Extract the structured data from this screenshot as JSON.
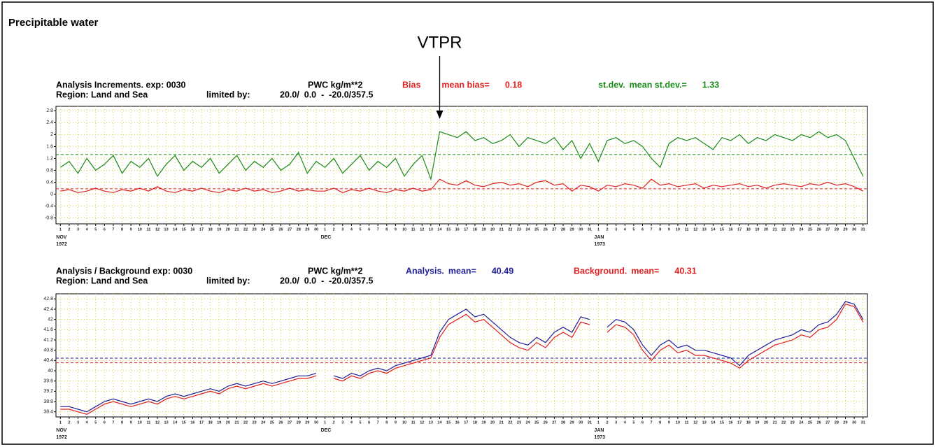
{
  "title": "Precipitable water",
  "annotation": "VTPR",
  "chart_data": [
    {
      "type": "line",
      "title": "Analysis Increments. exp: 0030",
      "units": "PWC kg/m**2",
      "region": "Region: Land and Sea",
      "limit_label": "limited by:",
      "limits": "20.0/  0.0  -  -20.0/357.5",
      "categories": [
        "1",
        "2",
        "3",
        "4",
        "5",
        "6",
        "7",
        "8",
        "9",
        "10",
        "11",
        "12",
        "13",
        "14",
        "15",
        "16",
        "17",
        "18",
        "19",
        "20",
        "21",
        "22",
        "23",
        "24",
        "25",
        "26",
        "27",
        "28",
        "29",
        "30",
        "1",
        "2",
        "3",
        "4",
        "5",
        "6",
        "7",
        "8",
        "9",
        "10",
        "11",
        "12",
        "13",
        "14",
        "15",
        "16",
        "17",
        "18",
        "19",
        "20",
        "21",
        "22",
        "23",
        "24",
        "25",
        "26",
        "27",
        "28",
        "29",
        "30",
        "31",
        "1",
        "2",
        "3",
        "4",
        "5",
        "6",
        "7",
        "8",
        "9",
        "10",
        "11",
        "12",
        "13",
        "14",
        "15",
        "16",
        "17",
        "18",
        "19",
        "20",
        "21",
        "22",
        "23",
        "24",
        "25",
        "26",
        "27",
        "28",
        "29",
        "30",
        "31"
      ],
      "months": [
        {
          "name": "NOV",
          "year": "1972"
        },
        {
          "name": "DEC"
        },
        {
          "name": "JAN",
          "year": "1973"
        }
      ],
      "ylim": [
        -1.0,
        2.95
      ],
      "yticks": [
        -0.8,
        -0.4,
        0,
        0.4,
        0.8,
        1.2,
        1.6,
        2,
        2.4,
        2.8
      ],
      "grid": true,
      "series": [
        {
          "name": "Bias",
          "mean_label": "mean bias=",
          "mean": 0.18,
          "color": "#e02020",
          "values": [
            0.1,
            0.15,
            0.05,
            0.1,
            0.2,
            0.1,
            0.05,
            0.15,
            0.1,
            0.2,
            0.1,
            0.25,
            0.1,
            0.05,
            0.15,
            0.1,
            0.2,
            0.1,
            0.05,
            0.15,
            0.1,
            0.2,
            0.1,
            0.15,
            0.05,
            0.1,
            0.2,
            0.1,
            0.15,
            0.1,
            0.1,
            0.2,
            0.05,
            0.15,
            0.1,
            0.2,
            0.1,
            0.05,
            0.15,
            0.1,
            0.2,
            0.1,
            0.15,
            0.5,
            0.35,
            0.3,
            0.45,
            0.3,
            0.25,
            0.35,
            0.4,
            0.3,
            0.35,
            0.25,
            0.4,
            0.45,
            0.3,
            0.35,
            0.1,
            0.3,
            0.25,
            0.1,
            0.3,
            0.25,
            0.35,
            0.3,
            0.2,
            0.5,
            0.3,
            0.35,
            0.25,
            0.3,
            0.35,
            0.2,
            0.3,
            0.25,
            0.3,
            0.35,
            0.25,
            0.3,
            0.2,
            0.3,
            0.35,
            0.3,
            0.25,
            0.35,
            0.3,
            0.4,
            0.3,
            0.35,
            0.25,
            0.1
          ]
        },
        {
          "name": "st.dev.",
          "mean_label": "mean st.dev.=",
          "mean": 1.33,
          "color": "#1a8a1a",
          "values": [
            0.9,
            1.1,
            0.7,
            1.2,
            0.8,
            1.0,
            1.3,
            0.7,
            1.1,
            0.9,
            1.2,
            0.6,
            1.0,
            1.3,
            0.8,
            1.1,
            0.9,
            1.2,
            0.7,
            1.0,
            1.3,
            0.8,
            1.1,
            0.9,
            1.2,
            0.8,
            1.0,
            1.4,
            0.7,
            1.1,
            0.9,
            1.2,
            0.7,
            1.0,
            1.3,
            0.8,
            1.1,
            0.9,
            1.2,
            0.6,
            1.0,
            1.3,
            0.5,
            2.1,
            2.0,
            1.9,
            2.1,
            1.8,
            1.9,
            1.7,
            1.8,
            2.0,
            1.6,
            1.9,
            1.8,
            1.7,
            1.9,
            1.5,
            1.8,
            1.2,
            1.7,
            1.1,
            1.8,
            1.9,
            1.7,
            1.8,
            1.6,
            1.2,
            0.9,
            1.7,
            1.9,
            1.8,
            1.9,
            1.7,
            1.5,
            1.9,
            1.8,
            2.0,
            1.7,
            1.9,
            1.8,
            2.0,
            1.9,
            1.8,
            2.0,
            1.9,
            2.1,
            1.9,
            2.0,
            1.8,
            1.2,
            0.6
          ]
        }
      ]
    },
    {
      "type": "line",
      "title": "Analysis / Background exp: 0030",
      "units": "PWC kg/m**2",
      "region": "Region: Land and Sea",
      "limit_label": "limited by:",
      "limits": "20.0/  0.0  -  -20.0/357.5",
      "categories": [
        "1",
        "2",
        "3",
        "4",
        "5",
        "6",
        "7",
        "8",
        "9",
        "10",
        "11",
        "12",
        "13",
        "14",
        "15",
        "16",
        "17",
        "18",
        "19",
        "20",
        "21",
        "22",
        "23",
        "24",
        "25",
        "26",
        "27",
        "28",
        "29",
        "30",
        "1",
        "2",
        "3",
        "4",
        "5",
        "6",
        "7",
        "8",
        "9",
        "10",
        "11",
        "12",
        "13",
        "14",
        "15",
        "16",
        "17",
        "18",
        "19",
        "20",
        "21",
        "22",
        "23",
        "24",
        "25",
        "26",
        "27",
        "28",
        "29",
        "30",
        "31",
        "1",
        "2",
        "3",
        "4",
        "5",
        "6",
        "7",
        "8",
        "9",
        "10",
        "11",
        "12",
        "13",
        "14",
        "15",
        "16",
        "17",
        "18",
        "19",
        "20",
        "21",
        "22",
        "23",
        "24",
        "25",
        "26",
        "27",
        "28",
        "29",
        "30",
        "31"
      ],
      "months": [
        {
          "name": "NOV",
          "year": "1972"
        },
        {
          "name": "DEC"
        },
        {
          "name": "JAN",
          "year": "1973"
        }
      ],
      "ylim": [
        38.2,
        43.0
      ],
      "yticks": [
        38.4,
        38.8,
        39.2,
        39.6,
        40,
        40.4,
        40.8,
        41.2,
        41.6,
        42,
        42.4,
        42.8
      ],
      "grid": true,
      "series": [
        {
          "name": "Analysis.",
          "mean_label": "mean=",
          "mean": 40.49,
          "color": "#20209a",
          "values": [
            38.6,
            38.6,
            38.5,
            38.4,
            38.6,
            38.8,
            38.9,
            38.8,
            38.7,
            38.8,
            38.9,
            38.8,
            39.0,
            39.1,
            39.0,
            39.1,
            39.2,
            39.3,
            39.2,
            39.4,
            39.5,
            39.4,
            39.5,
            39.6,
            39.5,
            39.6,
            39.7,
            39.8,
            39.8,
            39.9,
            null,
            39.8,
            39.7,
            39.9,
            39.8,
            40.0,
            40.1,
            40.0,
            40.2,
            40.3,
            40.4,
            40.5,
            40.6,
            41.5,
            42.0,
            42.2,
            42.4,
            42.1,
            42.2,
            41.9,
            41.6,
            41.3,
            41.1,
            41.0,
            41.3,
            41.1,
            41.5,
            41.7,
            41.5,
            42.1,
            42.0,
            null,
            41.7,
            42.0,
            41.9,
            41.6,
            41.0,
            40.6,
            41.0,
            41.2,
            40.9,
            41.0,
            40.8,
            40.8,
            40.7,
            40.6,
            40.5,
            40.2,
            40.6,
            40.8,
            41.0,
            41.2,
            41.3,
            41.4,
            41.6,
            41.5,
            41.8,
            41.9,
            42.2,
            42.7,
            42.6,
            42.0
          ]
        },
        {
          "name": "Background.",
          "mean_label": "mean=",
          "mean": 40.31,
          "color": "#e02020",
          "values": [
            38.5,
            38.5,
            38.4,
            38.3,
            38.5,
            38.7,
            38.8,
            38.7,
            38.6,
            38.7,
            38.8,
            38.7,
            38.9,
            39.0,
            38.9,
            39.0,
            39.1,
            39.2,
            39.1,
            39.3,
            39.4,
            39.3,
            39.4,
            39.5,
            39.4,
            39.5,
            39.6,
            39.7,
            39.7,
            39.8,
            null,
            39.7,
            39.6,
            39.8,
            39.7,
            39.9,
            40.0,
            39.9,
            40.1,
            40.2,
            40.3,
            40.4,
            40.5,
            41.3,
            41.8,
            42.0,
            42.2,
            41.9,
            42.0,
            41.7,
            41.4,
            41.1,
            40.9,
            40.8,
            41.1,
            40.9,
            41.3,
            41.5,
            41.3,
            41.9,
            41.8,
            null,
            41.5,
            41.8,
            41.7,
            41.4,
            40.8,
            40.4,
            40.8,
            41.0,
            40.7,
            40.8,
            40.6,
            40.6,
            40.5,
            40.4,
            40.3,
            40.1,
            40.4,
            40.6,
            40.8,
            41.0,
            41.1,
            41.2,
            41.4,
            41.3,
            41.6,
            41.7,
            42.0,
            42.6,
            42.5,
            41.9
          ]
        }
      ]
    }
  ]
}
